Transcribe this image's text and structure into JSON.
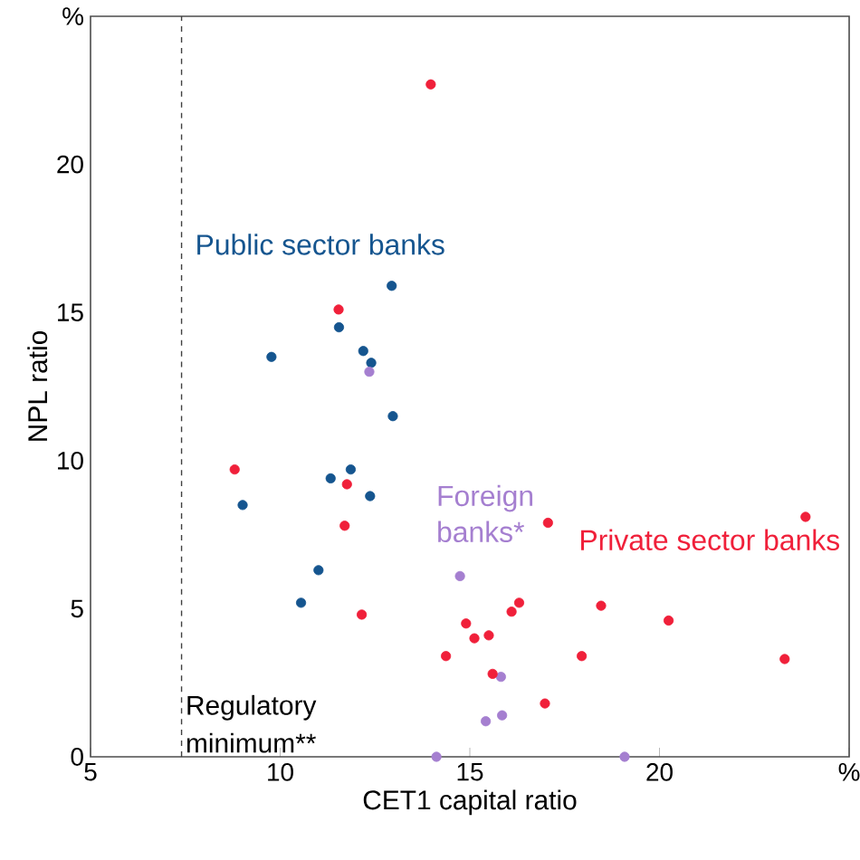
{
  "chart_data": {
    "type": "scatter",
    "xlabel": "CET1 capital ratio",
    "ylabel": "NPL ratio",
    "xlim": [
      5,
      25
    ],
    "xticks": [
      5,
      10,
      15,
      20,
      {
        "value": 25,
        "label": "%"
      }
    ],
    "ylim": [
      0,
      25
    ],
    "yticks": [
      0,
      5,
      10,
      15,
      20,
      {
        "value": 25,
        "label": "%"
      }
    ],
    "marker": "circle",
    "legend": false,
    "grid": false,
    "ref_lines": [
      {
        "axis": "x",
        "value": 7.4,
        "label": "Regulatory minimum**",
        "line_style": "dashed",
        "color": "#404040"
      }
    ],
    "series": [
      {
        "name": "Public sector banks",
        "color": "#15558f",
        "x": [
          12.94,
          11.55,
          12.19,
          12.4,
          9.77,
          12.97,
          11.86,
          11.33,
          12.37,
          9.01,
          11.01,
          10.55
        ],
        "values": [
          15.9,
          14.5,
          13.7,
          13.3,
          13.5,
          11.5,
          9.7,
          9.4,
          8.8,
          8.5,
          6.3,
          5.2
        ]
      },
      {
        "name": "Foreign banks*",
        "color": "#a57fd0",
        "x": [
          12.35,
          14.74,
          15.82,
          15.85,
          15.42,
          14.12,
          19.08
        ],
        "values": [
          13.0,
          6.1,
          2.7,
          1.4,
          1.2,
          0.0,
          0.0
        ]
      },
      {
        "name": "Private sector banks",
        "color": "#f0203a",
        "x": [
          13.97,
          11.54,
          8.8,
          11.76,
          11.7,
          12.15,
          17.06,
          23.85,
          16.3,
          16.1,
          18.46,
          20.24,
          14.9,
          15.12,
          15.5,
          14.37,
          17.95,
          23.3,
          15.6,
          16.98
        ],
        "values": [
          22.7,
          15.1,
          9.7,
          9.2,
          7.8,
          4.8,
          7.9,
          8.1,
          5.2,
          4.9,
          5.1,
          4.6,
          4.5,
          4.0,
          4.1,
          3.4,
          3.4,
          3.3,
          2.8,
          1.8
        ]
      }
    ]
  }
}
